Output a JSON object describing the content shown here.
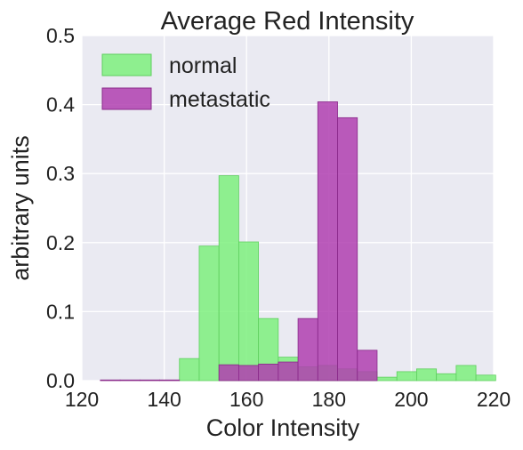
{
  "chart_data": {
    "type": "bar",
    "title": "Average Red Intensity",
    "xlabel": "Color Intensity",
    "ylabel": "arbitrary units",
    "xlim": [
      120,
      220
    ],
    "ylim": [
      0,
      0.5
    ],
    "xticks": [
      "120",
      "140",
      "160",
      "180",
      "200",
      "220"
    ],
    "yticks": [
      "0.0",
      "0.1",
      "0.2",
      "0.3",
      "0.4",
      "0.5"
    ],
    "grid": true,
    "legend_position": "upper-left",
    "bin_width": 4.8,
    "series": [
      {
        "name": "normal",
        "color": "#7ef07e",
        "edge": "#5fcf5f",
        "bins": [
          {
            "start": 143.7,
            "value": 0.032
          },
          {
            "start": 148.5,
            "value": 0.195
          },
          {
            "start": 153.3,
            "value": 0.297
          },
          {
            "start": 158.1,
            "value": 0.201
          },
          {
            "start": 162.9,
            "value": 0.09
          },
          {
            "start": 167.7,
            "value": 0.034
          },
          {
            "start": 172.5,
            "value": 0.02
          },
          {
            "start": 177.3,
            "value": 0.022
          },
          {
            "start": 182.1,
            "value": 0.017
          },
          {
            "start": 186.9,
            "value": 0.013
          },
          {
            "start": 191.7,
            "value": 0.005
          },
          {
            "start": 196.5,
            "value": 0.013
          },
          {
            "start": 201.3,
            "value": 0.017
          },
          {
            "start": 206.1,
            "value": 0.01
          },
          {
            "start": 210.9,
            "value": 0.022
          },
          {
            "start": 215.7,
            "value": 0.008
          }
        ]
      },
      {
        "name": "metastatic",
        "color": "#b040b0",
        "edge": "#8a2a8a",
        "bins": [
          {
            "start": 124.5,
            "value": 0.001
          },
          {
            "start": 129.3,
            "value": 0.001
          },
          {
            "start": 134.1,
            "value": 0.001
          },
          {
            "start": 138.9,
            "value": 0.001
          },
          {
            "start": 153.3,
            "value": 0.023
          },
          {
            "start": 158.1,
            "value": 0.022
          },
          {
            "start": 162.9,
            "value": 0.024
          },
          {
            "start": 167.7,
            "value": 0.027
          },
          {
            "start": 172.5,
            "value": 0.09
          },
          {
            "start": 177.3,
            "value": 0.404
          },
          {
            "start": 182.1,
            "value": 0.381
          },
          {
            "start": 186.9,
            "value": 0.044
          }
        ]
      }
    ]
  }
}
